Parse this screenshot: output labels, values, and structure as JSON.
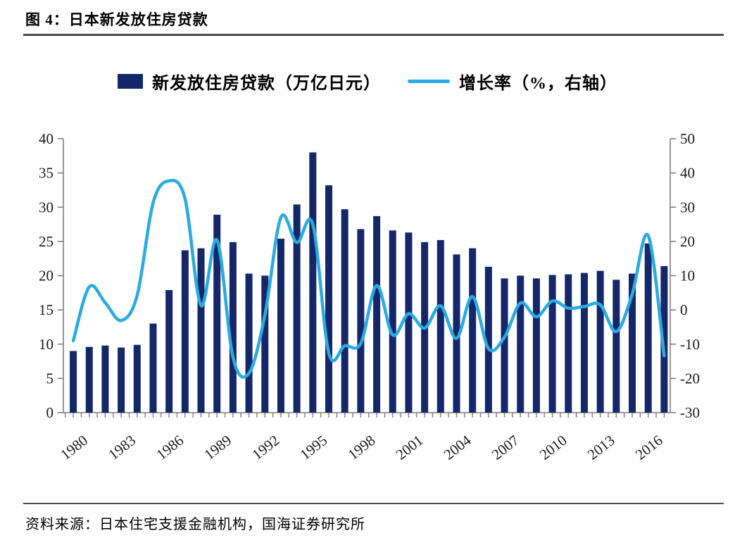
{
  "header": {
    "title": "图 4：日本新发放住房贷款"
  },
  "legend": {
    "bars_label": "新发放住房贷款（万亿日元）",
    "line_label": "增长率（%，右轴）"
  },
  "footer": {
    "source": "资料来源：日本住宅支援金融机构，国海证券研究所"
  },
  "colors": {
    "bar": "#15276b",
    "line": "#29abe2",
    "axis": "#7f7f7f",
    "tick_text": "#1a1a1a"
  },
  "chart_data": {
    "type": "bar",
    "subtype": "bar+line combo, dual axis",
    "title": "日本新发放住房贷款",
    "x": [
      1980,
      1981,
      1982,
      1983,
      1984,
      1985,
      1986,
      1987,
      1988,
      1989,
      1990,
      1991,
      1992,
      1993,
      1994,
      1995,
      1996,
      1997,
      1998,
      1999,
      2000,
      2001,
      2002,
      2003,
      2004,
      2005,
      2006,
      2007,
      2008,
      2009,
      2010,
      2011,
      2012,
      2013,
      2014,
      2015,
      2016,
      2017
    ],
    "x_tick_labels": [
      "1980",
      "1983",
      "1986",
      "1989",
      "1992",
      "1995",
      "1998",
      "2001",
      "2004",
      "2007",
      "2010",
      "2013",
      "2016"
    ],
    "x_tick_step": 3,
    "series": [
      {
        "name": "新发放住房贷款（万亿日元）",
        "type": "bar",
        "axis": "left",
        "values": [
          9.0,
          9.6,
          9.8,
          9.5,
          9.9,
          13.0,
          17.9,
          23.7,
          24.0,
          28.9,
          24.9,
          20.3,
          20.0,
          25.4,
          30.4,
          38.0,
          33.2,
          29.7,
          26.8,
          28.7,
          26.6,
          26.3,
          24.9,
          25.2,
          23.1,
          24.0,
          21.3,
          19.6,
          20.0,
          19.6,
          20.1,
          20.2,
          20.4,
          20.7,
          19.4,
          20.3,
          24.7,
          21.4
        ]
      },
      {
        "name": "增长率（%，右轴）",
        "type": "line",
        "axis": "right",
        "values": [
          -9.0,
          6.7,
          2.1,
          -3.1,
          4.2,
          31.3,
          37.7,
          32.4,
          1.3,
          20.4,
          -13.8,
          -18.5,
          -1.5,
          27.0,
          19.7,
          25.0,
          -12.6,
          -10.5,
          -9.8,
          7.1,
          -7.3,
          -1.1,
          -5.3,
          1.2,
          -8.3,
          3.9,
          -11.3,
          -8.0,
          2.0,
          -2.0,
          2.6,
          0.5,
          1.0,
          1.5,
          -6.3,
          4.6,
          21.7,
          -13.4
        ]
      }
    ],
    "left_axis": {
      "min": 0,
      "max": 40,
      "ticks": [
        0,
        5,
        10,
        15,
        20,
        25,
        30,
        35,
        40
      ]
    },
    "right_axis": {
      "min": -30,
      "max": 50,
      "ticks": [
        -30,
        -20,
        -10,
        0,
        10,
        20,
        30,
        40,
        50
      ]
    },
    "grid": false,
    "legend_position": "top"
  }
}
